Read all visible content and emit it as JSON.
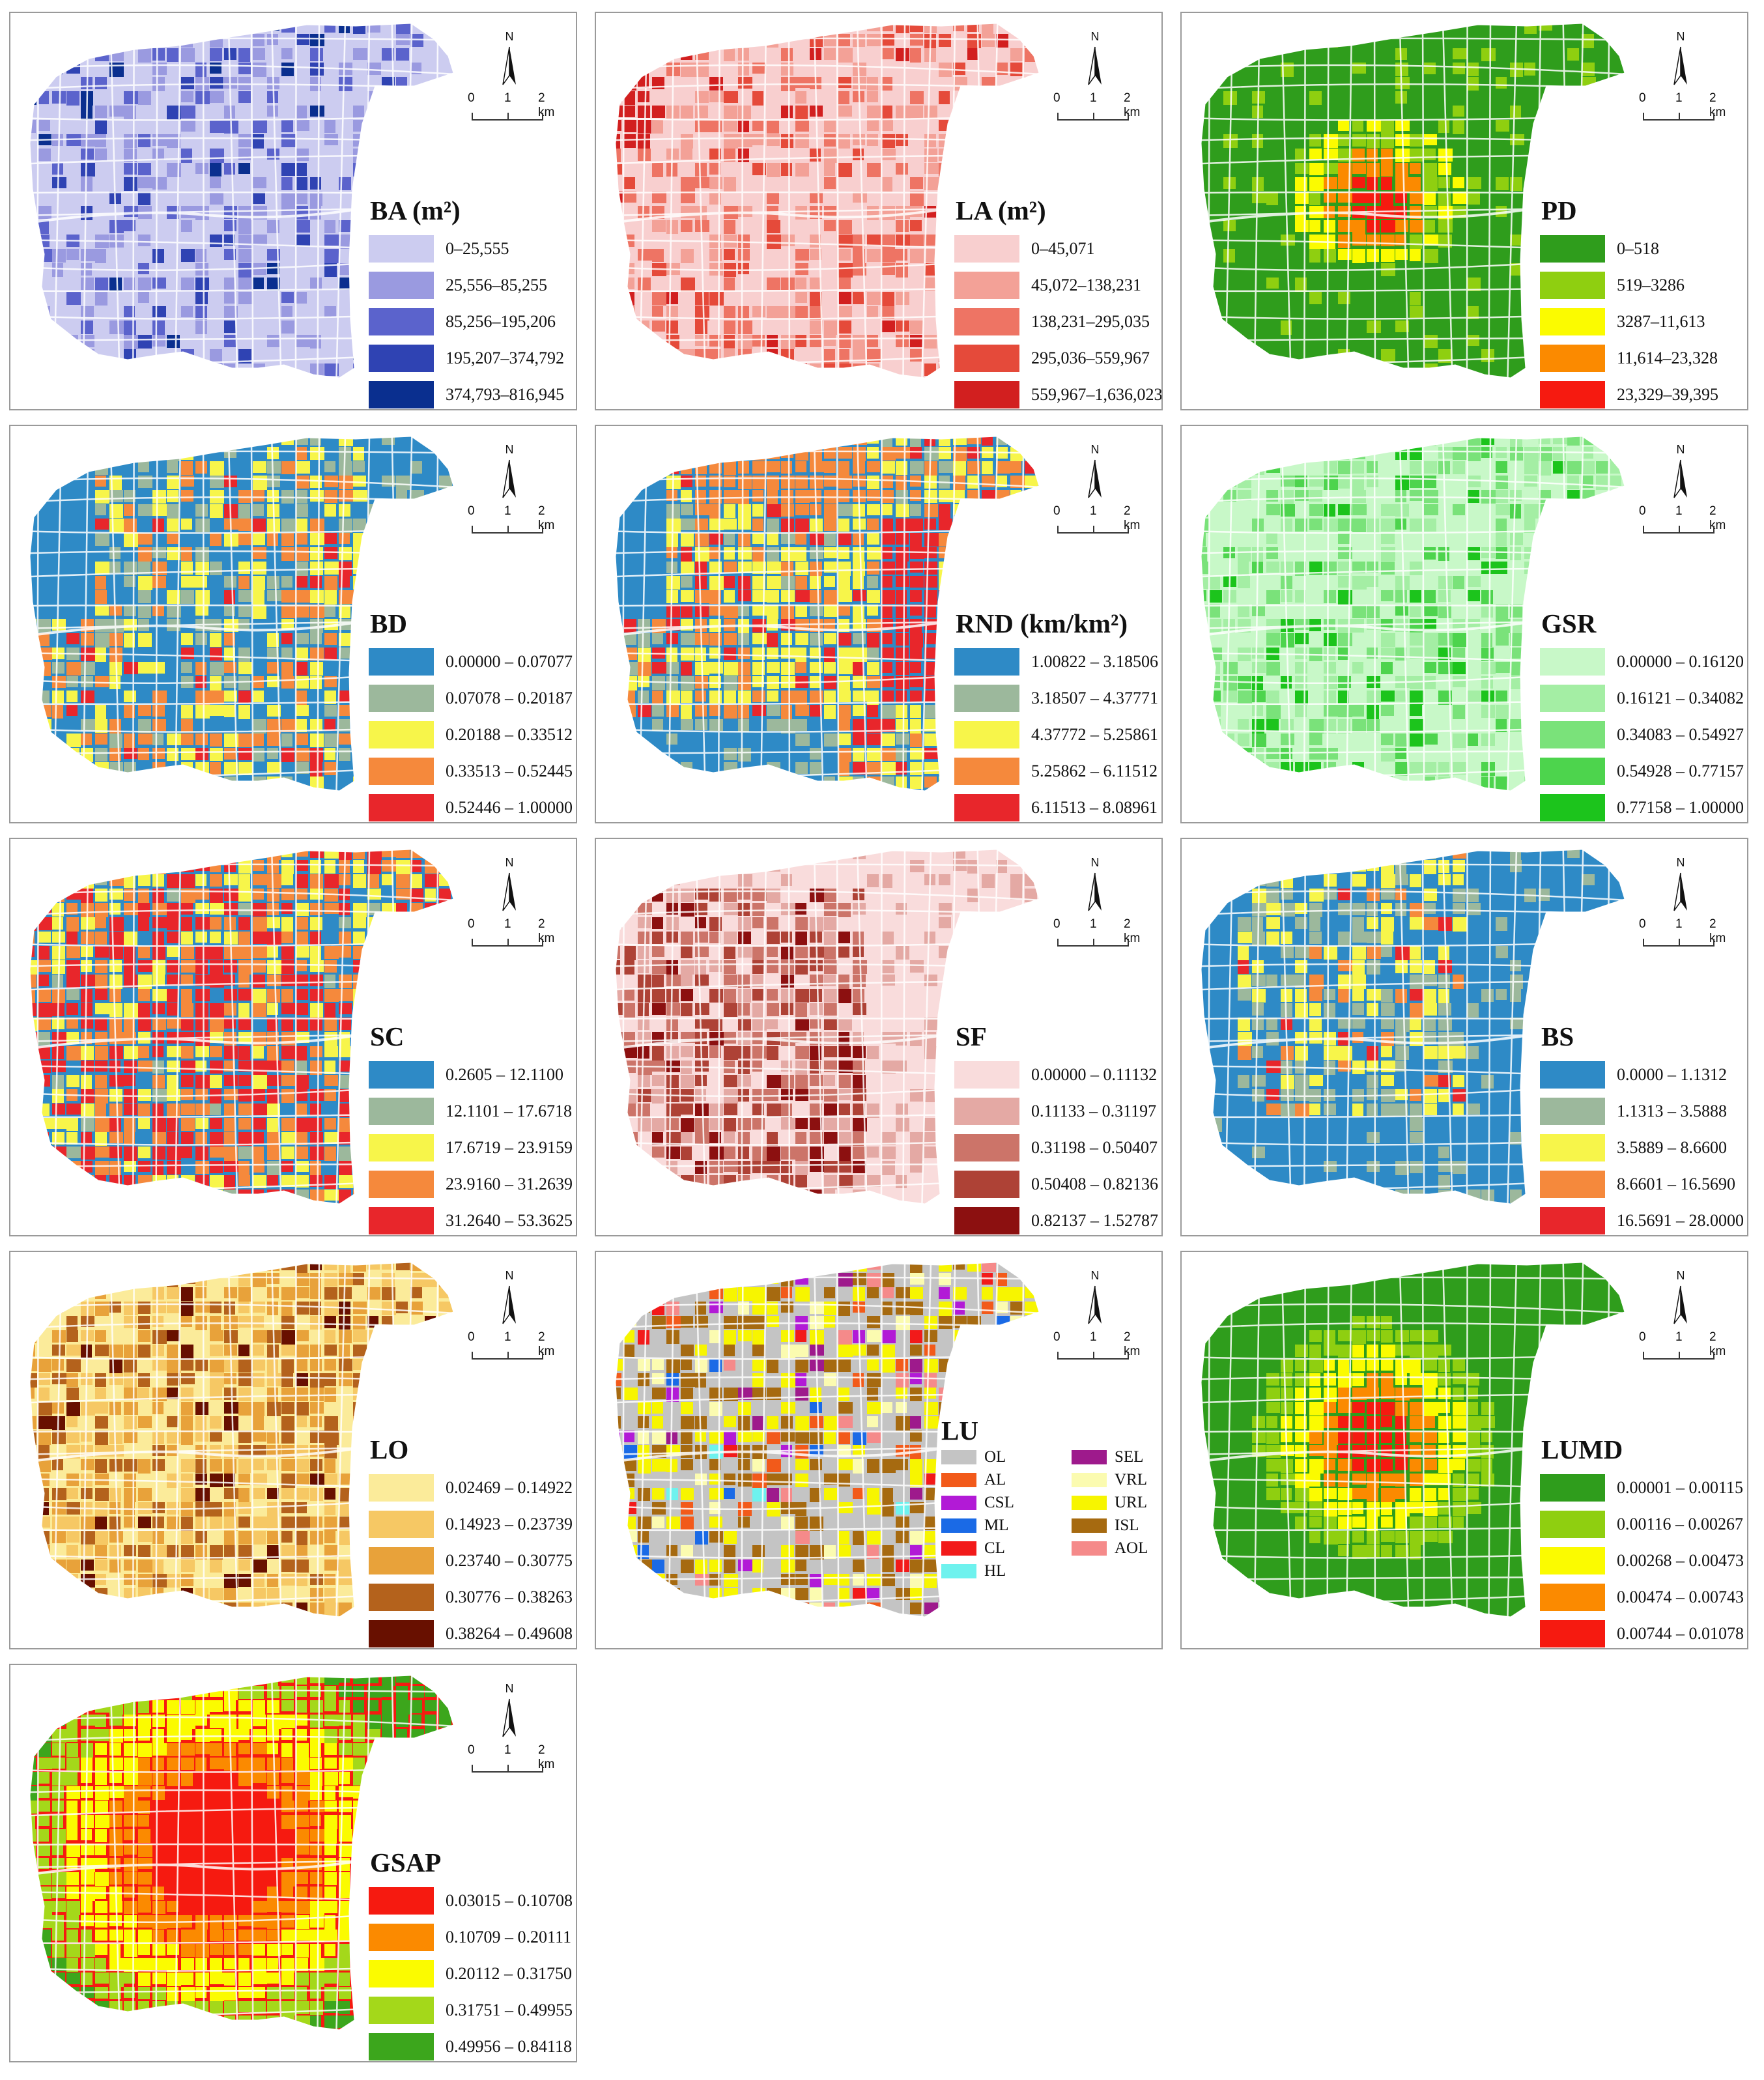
{
  "north_label": "N",
  "scale": {
    "t0": "0",
    "t1": "1",
    "t2": "2 km"
  },
  "panels": [
    {
      "id": "ba",
      "title": "BA (m²)",
      "palette": [
        "#ccccf0",
        "#9a9ae0",
        "#5b63cc",
        "#2f43b3",
        "#0a2f8f"
      ],
      "bins": [
        "0–25,555",
        "25,556–85,255",
        "85,256–195,206",
        "195,207–374,792",
        "374,793–816,945"
      ]
    },
    {
      "id": "la",
      "title": "LA (m²)",
      "palette": [
        "#f8cfcf",
        "#f3a197",
        "#ee7464",
        "#e54a3a",
        "#d21f1f"
      ],
      "bins": [
        "0–45,071",
        "45,072–138,231",
        "138,231–295,035",
        "295,036–559,967",
        "559,967–1,636,023"
      ]
    },
    {
      "id": "pd",
      "title": "PD",
      "palette": [
        "#2f9d1c",
        "#8fcf10",
        "#fbfb00",
        "#fb8a00",
        "#f61a10"
      ],
      "bins": [
        "0–518",
        "519–3286",
        "3287–11,613",
        "11,614–23,328",
        "23,329–39,395"
      ]
    },
    {
      "id": "bd",
      "title": "BD",
      "palette": [
        "#2e8ac6",
        "#9cb89c",
        "#f7f54a",
        "#f5893c",
        "#e8262b"
      ],
      "bins": [
        "0.00000 – 0.07077",
        "0.07078 – 0.20187",
        "0.20188 – 0.33512",
        "0.33513 – 0.52445",
        "0.52446 – 1.00000"
      ]
    },
    {
      "id": "rnd",
      "title": "RND (km/km²)",
      "palette": [
        "#2e8ac6",
        "#9cb89c",
        "#f7f54a",
        "#f5893c",
        "#e8262b"
      ],
      "bins": [
        "1.00822 – 3.18506",
        "3.18507 – 4.37771",
        "4.37772 – 5.25861",
        "5.25862 – 6.11512",
        "6.11513 – 8.08961"
      ]
    },
    {
      "id": "gsr",
      "title": "GSR",
      "palette": [
        "#c8f8c8",
        "#a4eea4",
        "#7ae27a",
        "#4dd44d",
        "#1cc41c"
      ],
      "bins": [
        "0.00000 – 0.16120",
        "0.16121 – 0.34082",
        "0.34083 – 0.54927",
        "0.54928 – 0.77157",
        "0.77158 – 1.00000"
      ]
    },
    {
      "id": "sc",
      "title": "SC",
      "palette": [
        "#2e8ac6",
        "#9cb89c",
        "#f7f54a",
        "#f5893c",
        "#e8262b"
      ],
      "bins": [
        "0.2605 – 12.1100",
        "12.1101 – 17.6718",
        "17.6719 – 23.9159",
        "23.9160 – 31.2639",
        "31.2640 – 53.3625"
      ]
    },
    {
      "id": "sf",
      "title": "SF",
      "palette": [
        "#f9dcdc",
        "#e4a9a4",
        "#cc7469",
        "#ae4236",
        "#8c1010"
      ],
      "bins": [
        "0.00000 – 0.11132",
        "0.11133 – 0.31197",
        "0.31198 – 0.50407",
        "0.50408 – 0.82136",
        "0.82137 – 1.52787"
      ]
    },
    {
      "id": "bs",
      "title": "BS",
      "palette": [
        "#2e8ac6",
        "#9cb89c",
        "#f7f54a",
        "#f5893c",
        "#e8262b"
      ],
      "bins": [
        "0.0000 – 1.1312",
        "1.1313 – 3.5888",
        "3.5889 – 8.6600",
        "8.6601 – 16.5690",
        "16.5691 – 28.0000"
      ]
    },
    {
      "id": "lo",
      "title": "LO",
      "palette": [
        "#fbeb9a",
        "#f6c864",
        "#e8a23a",
        "#b4621c",
        "#681000"
      ],
      "bins": [
        "0.02469 – 0.14922",
        "0.14923 – 0.23739",
        "0.23740 – 0.30775",
        "0.30776 – 0.38263",
        "0.38264 – 0.49608"
      ]
    },
    {
      "id": "lu",
      "title": "LU",
      "categories": [
        {
          "code": "OL",
          "color": "#c4c4c4"
        },
        {
          "code": "AL",
          "color": "#f25a1a"
        },
        {
          "code": "CSL",
          "color": "#b21ad6"
        },
        {
          "code": "ML",
          "color": "#1a6ae6"
        },
        {
          "code": "CL",
          "color": "#f21a1a"
        },
        {
          "code": "HL",
          "color": "#6ef2ee"
        },
        {
          "code": "SEL",
          "color": "#9e1a8c"
        },
        {
          "code": "VRL",
          "color": "#fbfbb0"
        },
        {
          "code": "URL",
          "color": "#f7f500"
        },
        {
          "code": "ISL",
          "color": "#a66a10"
        },
        {
          "code": "AOL",
          "color": "#f58a8a"
        }
      ]
    },
    {
      "id": "lumd",
      "title": "LUMD",
      "palette": [
        "#2f9d1c",
        "#8fcf10",
        "#fbfb00",
        "#fb8a00",
        "#f61a10"
      ],
      "bins": [
        "0.00001 – 0.00115",
        "0.00116 – 0.00267",
        "0.00268 – 0.00473",
        "0.00474 – 0.00743",
        "0.00744 – 0.01078"
      ]
    },
    {
      "id": "gsap",
      "title": "GSAP",
      "palette": [
        "#f61a10",
        "#fb8a00",
        "#fbfb00",
        "#a4d81a",
        "#3ca61c"
      ],
      "bins": [
        "0.03015 – 0.10708",
        "0.10709 – 0.20111",
        "0.20112 – 0.31750",
        "0.31751 – 0.49955",
        "0.49956 – 0.84118"
      ]
    }
  ]
}
